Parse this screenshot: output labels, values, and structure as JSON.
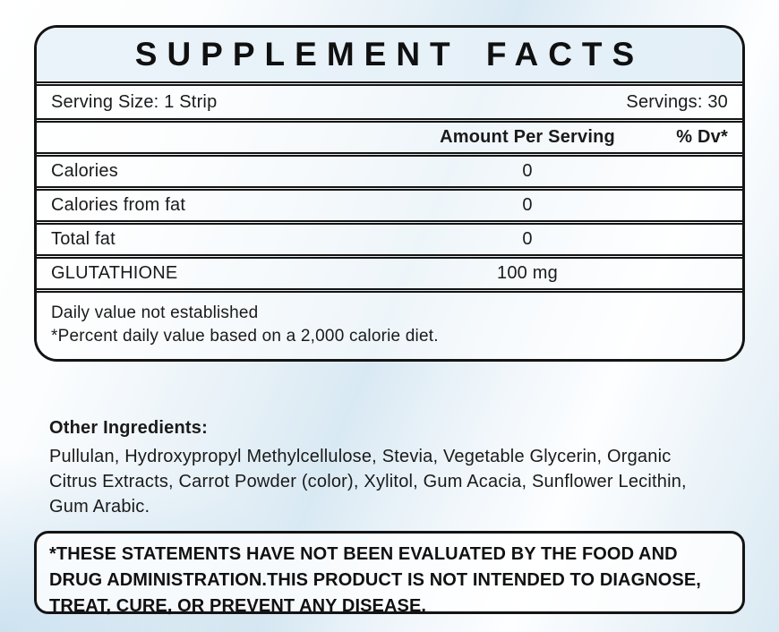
{
  "label": {
    "title": "SUPPLEMENT FACTS",
    "serving": {
      "size": "Serving Size: 1 Strip",
      "count": "Servings: 30"
    },
    "header": {
      "amount": "Amount Per Serving",
      "dv": "% Dv*"
    },
    "rows": [
      {
        "name": "Calories",
        "amount": "0",
        "dv": ""
      },
      {
        "name": "Calories from fat",
        "amount": "0",
        "dv": ""
      },
      {
        "name": "Total fat",
        "amount": "0",
        "dv": ""
      },
      {
        "name": "GLUTATHIONE",
        "amount": "100 mg",
        "dv": ""
      }
    ],
    "footnote_line1": "Daily value not established",
    "footnote_line2": "*Percent daily value based on a 2,000 calorie diet."
  },
  "other_ingredients": {
    "heading": "Other Ingredients:",
    "list": "Pullulan, Hydroxypropyl Methylcellulose, Stevia, Vegetable Glycerin, Organic Citrus Extracts, Carrot Powder (color), Xylitol, Gum Acacia, Sunflower Lecithin, Gum Arabic."
  },
  "disclaimer": {
    "text": "*THESE STATEMENTS HAVE NOT BEEN EVALUATED BY THE FOOD AND DRUG ADMINISTRATION.THIS PRODUCT IS NOT INTENDED TO DIAGNOSE, TREAT, CURE, OR PREVENT ANY DISEASE."
  },
  "colors": {
    "border": "#141414",
    "title_band": "#e8f1f9",
    "page_tint": "#d9e9f3",
    "text": "#1a1a1a"
  }
}
